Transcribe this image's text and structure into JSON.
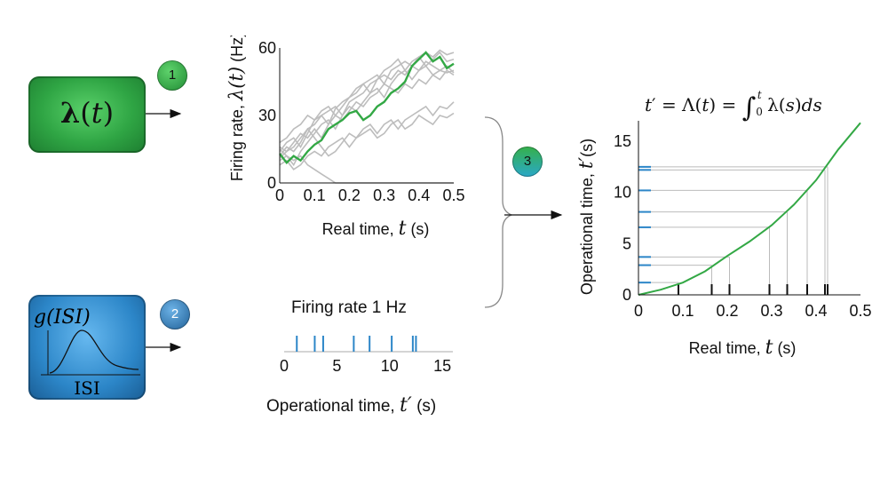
{
  "inputs": {
    "rate_box_label": "λ(t)",
    "isi_box_label_top": "g(ISI)",
    "isi_box_label_bottom": "ISI"
  },
  "badges": [
    "1",
    "2",
    "3"
  ],
  "colors": {
    "green": "#2fa544",
    "blue": "#2c86c8",
    "gray": "#bdbdbd",
    "trace": "#33a845"
  },
  "equation": "t′ = Λ(t) = ∫₀ᵗ λ(s)ds",
  "spike_panel": {
    "title": "Firing rate 1 Hz",
    "xlabel": "Operational time, t′ (s)"
  },
  "chart_data": [
    {
      "type": "line",
      "xlabel": "Real time, t  (s)",
      "ylabel": "Firing rate, λ(t)  (Hz)",
      "xlim": [
        0,
        0.5
      ],
      "ylim": [
        0,
        60
      ],
      "xticks": [
        "0",
        "0.1",
        "0.2",
        "0.3",
        "0.4",
        "0.5"
      ],
      "yticks": [
        "0",
        "30",
        "60"
      ],
      "highlight": {
        "x": [
          0,
          0.02,
          0.04,
          0.06,
          0.08,
          0.1,
          0.12,
          0.14,
          0.16,
          0.18,
          0.2,
          0.22,
          0.24,
          0.26,
          0.28,
          0.3,
          0.32,
          0.34,
          0.36,
          0.38,
          0.4,
          0.42,
          0.44,
          0.46,
          0.48,
          0.5
        ],
        "y": [
          13,
          9,
          12,
          10,
          14,
          17,
          19,
          24,
          26,
          28,
          31,
          32,
          28,
          30,
          34,
          36,
          40,
          42,
          45,
          52,
          55,
          58,
          54,
          56,
          51,
          53
        ]
      },
      "background_traces": [
        [
          14,
          18,
          20,
          16,
          22,
          28,
          30,
          26,
          33,
          36,
          38,
          42,
          44,
          40,
          46,
          50,
          52,
          55,
          50,
          54,
          56,
          52,
          55,
          58,
          54,
          55
        ],
        [
          10,
          12,
          8,
          14,
          18,
          22,
          26,
          28,
          24,
          30,
          34,
          32,
          36,
          40,
          42,
          38,
          44,
          48,
          50,
          46,
          50,
          52,
          48,
          50,
          49,
          50
        ],
        [
          16,
          14,
          18,
          22,
          20,
          24,
          20,
          26,
          30,
          28,
          32,
          36,
          34,
          38,
          40,
          44,
          42,
          40,
          44,
          42,
          46,
          44,
          48,
          46,
          50,
          48
        ],
        [
          12,
          16,
          14,
          18,
          24,
          20,
          16,
          12,
          14,
          18,
          22,
          20,
          24,
          26,
          22,
          26,
          28,
          24,
          28,
          30,
          32,
          34,
          30,
          34,
          33,
          36
        ],
        [
          18,
          20,
          24,
          26,
          30,
          28,
          32,
          34,
          30,
          34,
          38,
          40,
          44,
          46,
          48,
          44,
          50,
          52,
          54,
          52,
          56,
          58,
          56,
          59,
          57,
          58
        ],
        [
          8,
          10,
          6,
          8,
          12,
          14,
          12,
          16,
          18,
          20,
          16,
          20,
          22,
          24,
          20,
          22,
          26,
          28,
          24,
          26,
          30,
          28,
          26,
          30,
          29,
          31
        ],
        [
          15,
          12,
          10,
          12,
          8,
          6,
          4,
          2,
          0,
          0,
          0,
          0,
          0,
          0,
          0,
          0,
          0,
          0,
          0,
          0,
          0,
          0,
          0,
          0,
          0,
          0
        ],
        [
          11,
          14,
          16,
          20,
          24,
          26,
          30,
          32,
          34,
          30,
          36,
          38,
          40,
          44,
          46,
          48,
          46,
          50,
          48,
          52,
          50,
          54,
          52,
          50,
          52,
          49
        ]
      ]
    },
    {
      "type": "scatter",
      "title": "Firing rate 1 Hz",
      "xlabel": "Operational time, t′ (s)",
      "xlim": [
        0,
        16
      ],
      "xticks": [
        "0",
        "5",
        "10",
        "15"
      ],
      "spikes": [
        1.2,
        2.9,
        3.7,
        6.6,
        8.1,
        10.2,
        12.2,
        12.5
      ]
    },
    {
      "type": "line",
      "xlabel": "Real time, t  (s)",
      "ylabel": "Operational time, t′(s)",
      "xlim": [
        0,
        0.5
      ],
      "ylim": [
        0,
        17
      ],
      "xticks": [
        "0",
        "0.1",
        "0.2",
        "0.3",
        "0.4",
        "0.5"
      ],
      "yticks": [
        "0",
        "5",
        "10",
        "15"
      ],
      "curve": {
        "x": [
          0,
          0.05,
          0.1,
          0.15,
          0.2,
          0.25,
          0.3,
          0.35,
          0.4,
          0.45,
          0.5
        ],
        "y": [
          0,
          0.5,
          1.2,
          2.3,
          3.8,
          5.2,
          6.8,
          8.8,
          11.2,
          14.2,
          16.8
        ]
      },
      "real_spike_times": [
        0.09,
        0.165,
        0.205,
        0.295,
        0.335,
        0.38,
        0.42,
        0.426
      ],
      "operational_spike_times": [
        1.2,
        2.9,
        3.7,
        6.6,
        8.1,
        10.2,
        12.2,
        12.5
      ]
    }
  ]
}
